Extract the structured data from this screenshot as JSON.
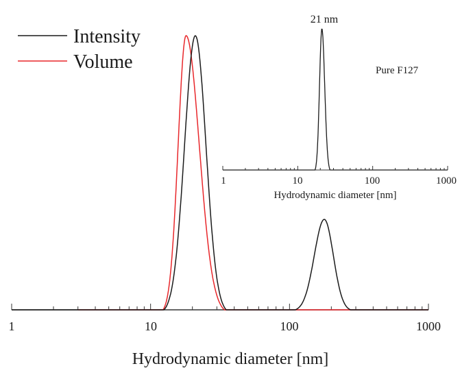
{
  "chart_data": [
    {
      "type": "line",
      "title": "",
      "xlabel": "Hydrodynamic diameter [nm]",
      "ylabel": "",
      "xscale": "log",
      "xlim": [
        1,
        1000
      ],
      "x_ticks": [
        "1",
        "10",
        "100",
        "1000"
      ],
      "grid": false,
      "legend_position": "upper-left",
      "series": [
        {
          "name": "Intensity",
          "color": "#1a1a1a",
          "peaks": [
            {
              "center_nm": 21,
              "relative_height": 1.0,
              "range_nm": [
                12.5,
                35
              ]
            },
            {
              "center_nm": 178,
              "relative_height": 0.33,
              "range_nm": [
                110,
                275
              ]
            }
          ]
        },
        {
          "name": "Volume",
          "color": "#e8262a",
          "peaks": [
            {
              "center_nm": 18,
              "relative_height": 1.0,
              "range_nm": [
                12.3,
                34
              ]
            }
          ]
        }
      ]
    },
    {
      "type": "line",
      "title": "Pure F127",
      "xlabel": "Hydrodynamic diameter [nm]",
      "ylabel": "",
      "xscale": "log",
      "xlim": [
        1,
        1000
      ],
      "x_ticks": [
        "1",
        "10",
        "100",
        "1000"
      ],
      "grid": false,
      "annotations": [
        "21 nm"
      ],
      "series": [
        {
          "name": "Pure F127",
          "color": "#1a1a1a",
          "peaks": [
            {
              "center_nm": 21,
              "relative_height": 1.0,
              "range_nm": [
                17,
                27
              ]
            }
          ]
        }
      ]
    }
  ],
  "main": {
    "xlabel": "Hydrodynamic diameter [nm]",
    "ticks": [
      "1",
      "10",
      "100",
      "1000"
    ],
    "legend": [
      {
        "label": "Intensity",
        "color": "#1a1a1a"
      },
      {
        "label": "Volume",
        "color": "#e8262a"
      }
    ]
  },
  "inset": {
    "label": "Pure F127",
    "annotation": "21 nm",
    "xlabel": "Hydrodynamic diameter [nm]",
    "ticks": [
      "1",
      "10",
      "100",
      "1000"
    ]
  }
}
